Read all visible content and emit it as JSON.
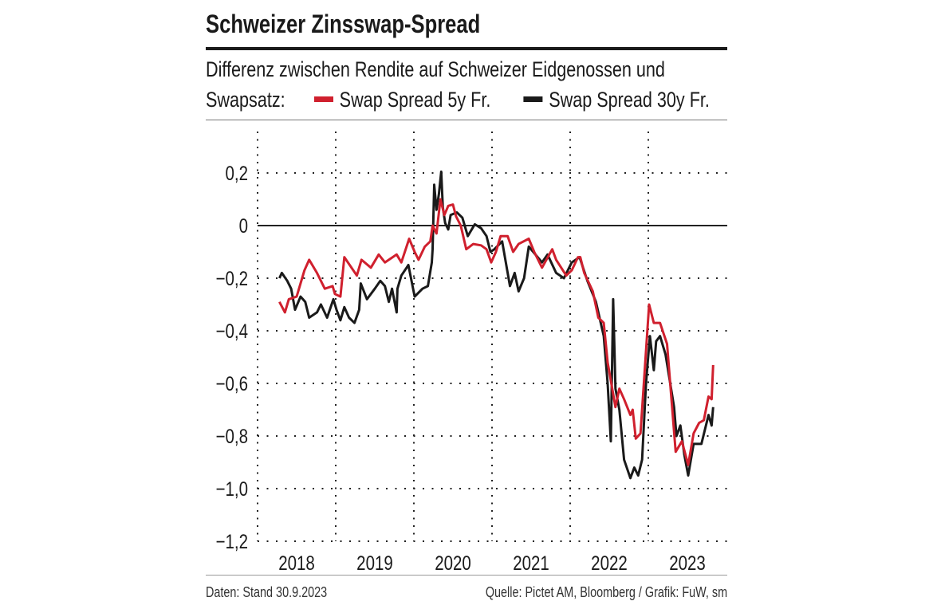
{
  "chart_data": {
    "type": "line",
    "title": "Schweizer Zinsswap-Spread",
    "subtitle_line1": "Differenz zwischen Rendite auf Schweizer Eidgenossen und",
    "subtitle_line2": "Swapsatz:",
    "legend_placement": "top",
    "xlim": [
      2018,
      2024
    ],
    "ylim": [
      -1.2,
      0.35
    ],
    "grid": true,
    "x_tick_labels": [
      "2018",
      "2019",
      "2020",
      "2021",
      "2022",
      "2023"
    ],
    "y_ticks": [
      0.2,
      0,
      -0.2,
      -0.4,
      -0.6,
      -0.8,
      -1.0,
      -1.2
    ],
    "y_tick_labels": [
      "0,2",
      "0",
      "−0,2",
      "−0,4",
      "−0,6",
      "−0,8",
      "−1,0",
      "−1,2"
    ],
    "series": [
      {
        "name": "Swap Spread 5y Fr.",
        "color": "#d0202e",
        "points": [
          [
            2018.28,
            -0.29
          ],
          [
            2018.35,
            -0.33
          ],
          [
            2018.4,
            -0.28
          ],
          [
            2018.5,
            -0.27
          ],
          [
            2018.6,
            -0.17
          ],
          [
            2018.66,
            -0.13
          ],
          [
            2018.76,
            -0.18
          ],
          [
            2018.86,
            -0.24
          ],
          [
            2018.96,
            -0.23
          ],
          [
            2018.99,
            -0.26
          ],
          [
            2019.06,
            -0.27
          ],
          [
            2019.11,
            -0.12
          ],
          [
            2019.27,
            -0.19
          ],
          [
            2019.33,
            -0.13
          ],
          [
            2019.45,
            -0.16
          ],
          [
            2019.55,
            -0.11
          ],
          [
            2019.63,
            -0.14
          ],
          [
            2019.78,
            -0.11
          ],
          [
            2019.84,
            -0.14
          ],
          [
            2019.94,
            -0.05
          ],
          [
            2020.01,
            -0.1
          ],
          [
            2020.06,
            -0.13
          ],
          [
            2020.14,
            -0.08
          ],
          [
            2020.21,
            -0.06
          ],
          [
            2020.24,
            0.0
          ],
          [
            2020.29,
            -0.03
          ],
          [
            2020.34,
            0.1
          ],
          [
            2020.39,
            0.04
          ],
          [
            2020.44,
            0.075
          ],
          [
            2020.5,
            0.08
          ],
          [
            2020.54,
            0.035
          ],
          [
            2020.6,
            0.0
          ],
          [
            2020.67,
            -0.09
          ],
          [
            2020.76,
            -0.07
          ],
          [
            2020.86,
            -0.075
          ],
          [
            2020.93,
            -0.09
          ],
          [
            2020.99,
            -0.14
          ],
          [
            2021.05,
            -0.1
          ],
          [
            2021.11,
            -0.04
          ],
          [
            2021.2,
            -0.04
          ],
          [
            2021.27,
            -0.1
          ],
          [
            2021.34,
            -0.07
          ],
          [
            2021.47,
            -0.05
          ],
          [
            2021.54,
            -0.1
          ],
          [
            2021.64,
            -0.16
          ],
          [
            2021.77,
            -0.09
          ],
          [
            2021.82,
            -0.13
          ],
          [
            2021.95,
            -0.19
          ],
          [
            2022.02,
            -0.17
          ],
          [
            2022.1,
            -0.12
          ],
          [
            2022.13,
            -0.12
          ],
          [
            2022.18,
            -0.18
          ],
          [
            2022.29,
            -0.25
          ],
          [
            2022.36,
            -0.35
          ],
          [
            2022.43,
            -0.37
          ],
          [
            2022.48,
            -0.52
          ],
          [
            2022.58,
            -0.69
          ],
          [
            2022.63,
            -0.62
          ],
          [
            2022.69,
            -0.66
          ],
          [
            2022.77,
            -0.72
          ],
          [
            2022.8,
            -0.7
          ],
          [
            2022.84,
            -0.81
          ],
          [
            2022.9,
            -0.79
          ],
          [
            2023.01,
            -0.3
          ],
          [
            2023.07,
            -0.37
          ],
          [
            2023.15,
            -0.37
          ],
          [
            2023.24,
            -0.45
          ],
          [
            2023.35,
            -0.86
          ],
          [
            2023.43,
            -0.82
          ],
          [
            2023.51,
            -0.91
          ],
          [
            2023.58,
            -0.79
          ],
          [
            2023.65,
            -0.75
          ],
          [
            2023.71,
            -0.74
          ],
          [
            2023.77,
            -0.65
          ],
          [
            2023.81,
            -0.66
          ],
          [
            2023.83,
            -0.53
          ]
        ]
      },
      {
        "name": "Swap Spread 30y Fr.",
        "color": "#1a1a1a",
        "points": [
          [
            2018.28,
            -0.2
          ],
          [
            2018.31,
            -0.18
          ],
          [
            2018.38,
            -0.21
          ],
          [
            2018.43,
            -0.24
          ],
          [
            2018.48,
            -0.32
          ],
          [
            2018.55,
            -0.27
          ],
          [
            2018.61,
            -0.29
          ],
          [
            2018.66,
            -0.35
          ],
          [
            2018.76,
            -0.33
          ],
          [
            2018.81,
            -0.3
          ],
          [
            2018.89,
            -0.35
          ],
          [
            2018.97,
            -0.28
          ],
          [
            2019.01,
            -0.32
          ],
          [
            2019.06,
            -0.36
          ],
          [
            2019.11,
            -0.31
          ],
          [
            2019.17,
            -0.35
          ],
          [
            2019.24,
            -0.37
          ],
          [
            2019.3,
            -0.32
          ],
          [
            2019.32,
            -0.22
          ],
          [
            2019.4,
            -0.28
          ],
          [
            2019.5,
            -0.24
          ],
          [
            2019.57,
            -0.21
          ],
          [
            2019.63,
            -0.23
          ],
          [
            2019.68,
            -0.29
          ],
          [
            2019.72,
            -0.24
          ],
          [
            2019.78,
            -0.33
          ],
          [
            2019.79,
            -0.24
          ],
          [
            2019.84,
            -0.19
          ],
          [
            2019.93,
            -0.15
          ],
          [
            2020.01,
            -0.27
          ],
          [
            2020.11,
            -0.24
          ],
          [
            2020.18,
            -0.23
          ],
          [
            2020.23,
            -0.14
          ],
          [
            2020.24,
            -0.09
          ],
          [
            2020.26,
            0.155
          ],
          [
            2020.29,
            0.06
          ],
          [
            2020.32,
            0.12
          ],
          [
            2020.35,
            0.205
          ],
          [
            2020.37,
            0.07
          ],
          [
            2020.4,
            0.01
          ],
          [
            2020.44,
            -0.015
          ],
          [
            2020.47,
            0.04
          ],
          [
            2020.55,
            0.05
          ],
          [
            2020.62,
            0.03
          ],
          [
            2020.69,
            -0.04
          ],
          [
            2020.78,
            0.005
          ],
          [
            2020.86,
            -0.01
          ],
          [
            2020.93,
            -0.04
          ],
          [
            2020.98,
            -0.1
          ],
          [
            2021.03,
            -0.09
          ],
          [
            2021.13,
            -0.06
          ],
          [
            2021.23,
            -0.23
          ],
          [
            2021.29,
            -0.18
          ],
          [
            2021.34,
            -0.25
          ],
          [
            2021.41,
            -0.2
          ],
          [
            2021.47,
            -0.08
          ],
          [
            2021.64,
            -0.14
          ],
          [
            2021.71,
            -0.11
          ],
          [
            2021.82,
            -0.18
          ],
          [
            2021.92,
            -0.2
          ],
          [
            2022.02,
            -0.14
          ],
          [
            2022.12,
            -0.12
          ],
          [
            2022.22,
            -0.21
          ],
          [
            2022.33,
            -0.29
          ],
          [
            2022.43,
            -0.42
          ],
          [
            2022.46,
            -0.53
          ],
          [
            2022.48,
            -0.6
          ],
          [
            2022.52,
            -0.82
          ],
          [
            2022.55,
            -0.28
          ],
          [
            2022.58,
            -0.62
          ],
          [
            2022.63,
            -0.7
          ],
          [
            2022.69,
            -0.89
          ],
          [
            2022.77,
            -0.96
          ],
          [
            2022.82,
            -0.92
          ],
          [
            2022.87,
            -0.95
          ],
          [
            2022.92,
            -0.89
          ],
          [
            2022.97,
            -0.6
          ],
          [
            2023.02,
            -0.42
          ],
          [
            2023.07,
            -0.55
          ],
          [
            2023.1,
            -0.44
          ],
          [
            2023.15,
            -0.42
          ],
          [
            2023.22,
            -0.49
          ],
          [
            2023.33,
            -0.69
          ],
          [
            2023.36,
            -0.8
          ],
          [
            2023.41,
            -0.76
          ],
          [
            2023.46,
            -0.87
          ],
          [
            2023.51,
            -0.95
          ],
          [
            2023.58,
            -0.83
          ],
          [
            2023.68,
            -0.83
          ],
          [
            2023.77,
            -0.72
          ],
          [
            2023.81,
            -0.76
          ],
          [
            2023.83,
            -0.69
          ]
        ]
      }
    ]
  },
  "footer": {
    "left": "Daten: Stand 30.9.2023",
    "right": "Quelle: Pictet AM, Bloomberg / Grafik: FuW, sm"
  }
}
